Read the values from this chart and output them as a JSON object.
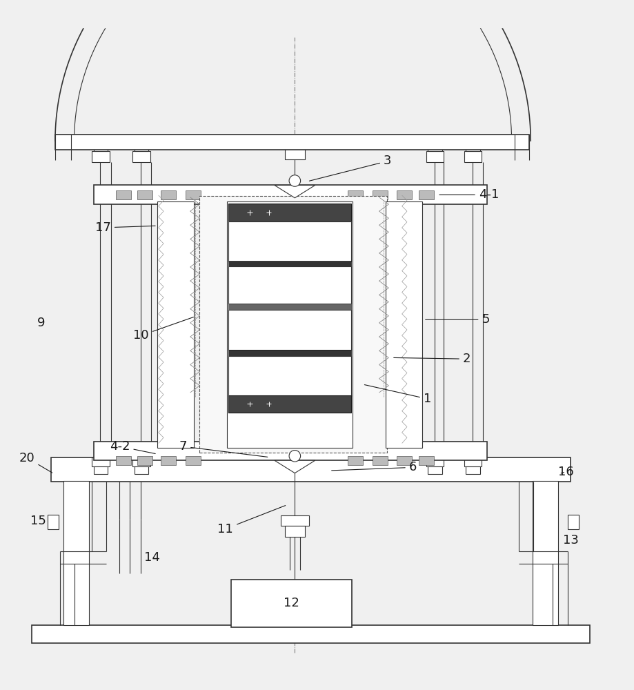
{
  "bg_color": "#f0f0f0",
  "line_color": "#333333",
  "dark_color": "#1a1a1a",
  "label_color": "#222222",
  "fig_width": 9.19,
  "fig_height": 10.0
}
